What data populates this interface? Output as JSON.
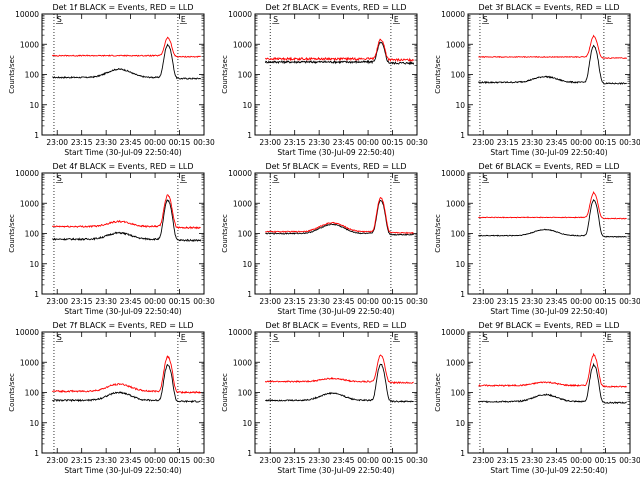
{
  "figure": {
    "xlabel": "Start Time (30-Jul-09 22:50:40)",
    "ylabel": "Counts/sec",
    "x_ticks": [
      "23:00",
      "23:15",
      "23:30",
      "23:45",
      "00:00",
      "00:15",
      "00:30"
    ],
    "y_ticks": [
      "1",
      "10",
      "100",
      "1000",
      "10000"
    ],
    "marker_labels": [
      "S",
      "E"
    ]
  },
  "chart_data": [
    {
      "type": "line",
      "title": "Det 1f BLACK = Events, RED = LLD",
      "xlim": [
        "22:50:40",
        "00:30:00"
      ],
      "ylim": [
        1,
        10000
      ],
      "yscale": "log",
      "markers": [
        "22:58",
        "00:14"
      ],
      "series": [
        {
          "color": "#000000",
          "base": 80,
          "bump": 70,
          "peak": 1000,
          "noise": 0.05
        },
        {
          "color": "#ff0000",
          "base": 420,
          "bump": 0,
          "peak": 1700,
          "noise": 0.04
        }
      ]
    },
    {
      "type": "line",
      "title": "Det 2f BLACK = Events, RED = LLD",
      "xlim": [
        "22:50:40",
        "00:30:00"
      ],
      "ylim": [
        1,
        10000
      ],
      "yscale": "log",
      "markers": [
        "23:00",
        "00:14"
      ],
      "series": [
        {
          "color": "#000000",
          "base": 260,
          "bump": 0,
          "peak": 1200,
          "noise": 0.08
        },
        {
          "color": "#ff0000",
          "base": 330,
          "bump": 0,
          "peak": 1500,
          "noise": 0.08
        }
      ]
    },
    {
      "type": "line",
      "title": "Det 3f BLACK = Events, RED = LLD",
      "xlim": [
        "22:50:40",
        "00:30:00"
      ],
      "ylim": [
        1,
        10000
      ],
      "yscale": "log",
      "markers": [
        "22:58",
        "00:14"
      ],
      "series": [
        {
          "color": "#000000",
          "base": 55,
          "bump": 30,
          "peak": 900,
          "noise": 0.05
        },
        {
          "color": "#ff0000",
          "base": 380,
          "bump": 0,
          "peak": 1900,
          "noise": 0.03
        }
      ]
    },
    {
      "type": "line",
      "title": "Det 4f BLACK = Events, RED = LLD",
      "xlim": [
        "22:50:40",
        "00:30:00"
      ],
      "ylim": [
        1,
        10000
      ],
      "yscale": "log",
      "markers": [
        "22:58",
        "00:14"
      ],
      "series": [
        {
          "color": "#000000",
          "base": 65,
          "bump": 40,
          "peak": 1300,
          "noise": 0.06
        },
        {
          "color": "#ff0000",
          "base": 170,
          "bump": 80,
          "peak": 1900,
          "noise": 0.06
        }
      ]
    },
    {
      "type": "line",
      "title": "Det 5f BLACK = Events, RED = LLD",
      "xlim": [
        "22:50:40",
        "00:30:00"
      ],
      "ylim": [
        1,
        10000
      ],
      "yscale": "log",
      "markers": [
        "23:00",
        "00:14"
      ],
      "series": [
        {
          "color": "#000000",
          "base": 100,
          "bump": 100,
          "peak": 1300,
          "noise": 0.04
        },
        {
          "color": "#ff0000",
          "base": 115,
          "bump": 110,
          "peak": 1600,
          "noise": 0.04
        }
      ]
    },
    {
      "type": "line",
      "title": "Det 6f BLACK = Events, RED = LLD",
      "xlim": [
        "22:50:40",
        "00:30:00"
      ],
      "ylim": [
        1,
        10000
      ],
      "yscale": "log",
      "markers": [
        "22:58",
        "00:14"
      ],
      "series": [
        {
          "color": "#000000",
          "base": 85,
          "bump": 50,
          "peak": 1300,
          "noise": 0.03
        },
        {
          "color": "#ff0000",
          "base": 340,
          "bump": 0,
          "peak": 2300,
          "noise": 0.03
        }
      ]
    },
    {
      "type": "line",
      "title": "Det 7f BLACK = Events, RED = LLD",
      "xlim": [
        "22:50:40",
        "00:30:00"
      ],
      "ylim": [
        1,
        10000
      ],
      "yscale": "log",
      "markers": [
        "22:58",
        "00:14"
      ],
      "series": [
        {
          "color": "#000000",
          "base": 55,
          "bump": 45,
          "peak": 850,
          "noise": 0.06
        },
        {
          "color": "#ff0000",
          "base": 110,
          "bump": 80,
          "peak": 1600,
          "noise": 0.06
        }
      ]
    },
    {
      "type": "line",
      "title": "Det 8f BLACK = Events, RED = LLD",
      "xlim": [
        "22:50:40",
        "00:30:00"
      ],
      "ylim": [
        1,
        10000
      ],
      "yscale": "log",
      "markers": [
        "23:00",
        "00:14"
      ],
      "series": [
        {
          "color": "#000000",
          "base": 55,
          "bump": 40,
          "peak": 900,
          "noise": 0.05
        },
        {
          "color": "#ff0000",
          "base": 230,
          "bump": 60,
          "peak": 1800,
          "noise": 0.05
        }
      ]
    },
    {
      "type": "line",
      "title": "Det 9f BLACK = Events, RED = LLD",
      "xlim": [
        "22:50:40",
        "00:30:00"
      ],
      "ylim": [
        1,
        10000
      ],
      "yscale": "log",
      "markers": [
        "22:58",
        "00:14"
      ],
      "series": [
        {
          "color": "#000000",
          "base": 50,
          "bump": 35,
          "peak": 850,
          "noise": 0.05
        },
        {
          "color": "#ff0000",
          "base": 170,
          "bump": 50,
          "peak": 1800,
          "noise": 0.05
        }
      ]
    }
  ]
}
